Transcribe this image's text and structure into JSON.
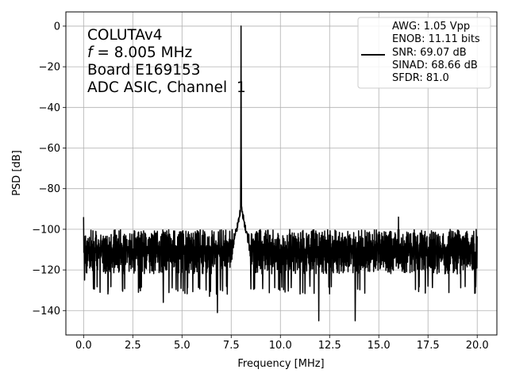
{
  "chart_data": {
    "type": "line",
    "xlabel": "Frequency [MHz]",
    "ylabel": "PSD [dB]",
    "xlim": [
      -0.9,
      21.0
    ],
    "ylim": [
      -152,
      7
    ],
    "xticks": [
      0.0,
      2.5,
      5.0,
      7.5,
      10.0,
      12.5,
      15.0,
      17.5,
      20.0
    ],
    "xtick_labels": [
      "0.0",
      "2.5",
      "5.0",
      "7.5",
      "10.0",
      "12.5",
      "15.0",
      "17.5",
      "20.0"
    ],
    "yticks": [
      0,
      -20,
      -40,
      -60,
      -80,
      -100,
      -120,
      -140
    ],
    "ytick_labels": [
      "0",
      "−20",
      "−40",
      "−60",
      "−80",
      "−100",
      "−120",
      "−140"
    ],
    "grid": true,
    "line_color": "#000000",
    "annotation": {
      "line1": "COLUTAv4",
      "line2_italic": "f",
      "line2_rest": " = 8.005 MHz",
      "line3": "Board E169153",
      "line4": "ADC ASIC, Channel  1"
    },
    "legend": {
      "position": "top-right",
      "lines": [
        "AWG: 1.05 Vpp",
        "ENOB: 11.11 bits",
        "SNR: 69.07 dB",
        "SINAD: 68.66 dB",
        "SFDR: 81.0"
      ]
    },
    "series": [
      {
        "peak": {
          "x": 8.005,
          "y": 0
        },
        "features": [
          {
            "x": 0.0,
            "y": -94
          },
          {
            "x": 0.05,
            "y": -125
          },
          {
            "x": 6.8,
            "y": -141
          },
          {
            "x": 11.95,
            "y": -145
          },
          {
            "x": 13.8,
            "y": -145
          },
          {
            "x": 16.0,
            "y": -94
          },
          {
            "x": 4.05,
            "y": -136
          },
          {
            "x": 6.4,
            "y": -133
          }
        ],
        "noise_floor": {
          "from": 0.0,
          "to": 20.0,
          "mean": -110,
          "upper": -100,
          "lower": -128
        }
      }
    ]
  }
}
